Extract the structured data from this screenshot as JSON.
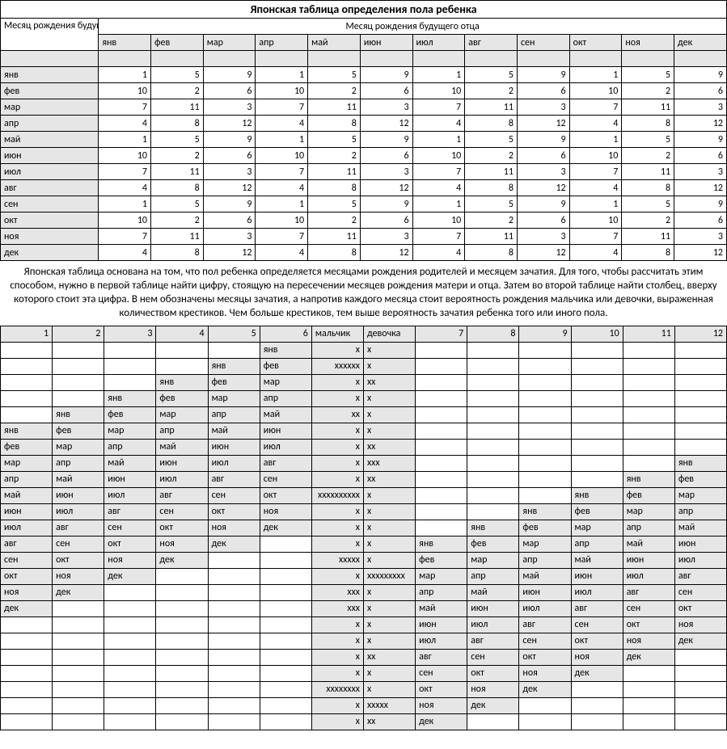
{
  "title": "Японская таблица определения пола ребенка",
  "header_mother": "Месяц рождения будущей матери",
  "header_father": "Месяц рождения будущего отца",
  "months": [
    "янв",
    "фев",
    "мар",
    "апр",
    "май",
    "июн",
    "июл",
    "авг",
    "сен",
    "окт",
    "ноя",
    "дек"
  ],
  "table1_rows": [
    {
      "m": "янв",
      "v": [
        1,
        5,
        9,
        1,
        5,
        9,
        1,
        5,
        9,
        1,
        5,
        9
      ]
    },
    {
      "m": "фев",
      "v": [
        10,
        2,
        6,
        10,
        2,
        6,
        10,
        2,
        6,
        10,
        2,
        6
      ]
    },
    {
      "m": "мар",
      "v": [
        7,
        11,
        3,
        7,
        11,
        3,
        7,
        11,
        3,
        7,
        11,
        3
      ]
    },
    {
      "m": "апр",
      "v": [
        4,
        8,
        12,
        4,
        8,
        12,
        4,
        8,
        12,
        4,
        8,
        12
      ]
    },
    {
      "m": "май",
      "v": [
        1,
        5,
        9,
        1,
        5,
        9,
        1,
        5,
        9,
        1,
        5,
        9
      ]
    },
    {
      "m": "июн",
      "v": [
        10,
        2,
        6,
        10,
        2,
        6,
        10,
        2,
        6,
        10,
        2,
        6
      ]
    },
    {
      "m": "июл",
      "v": [
        7,
        11,
        3,
        7,
        11,
        3,
        7,
        11,
        3,
        7,
        11,
        3
      ]
    },
    {
      "m": "авг",
      "v": [
        4,
        8,
        12,
        4,
        8,
        12,
        4,
        8,
        12,
        4,
        8,
        12
      ]
    },
    {
      "m": "сен",
      "v": [
        1,
        5,
        9,
        1,
        5,
        9,
        1,
        5,
        9,
        1,
        5,
        9
      ]
    },
    {
      "m": "окт",
      "v": [
        10,
        2,
        6,
        10,
        2,
        6,
        10,
        2,
        6,
        10,
        2,
        6
      ]
    },
    {
      "m": "ноя",
      "v": [
        7,
        11,
        3,
        7,
        11,
        3,
        7,
        11,
        3,
        7,
        11,
        3
      ]
    },
    {
      "m": "дек",
      "v": [
        4,
        8,
        12,
        4,
        8,
        12,
        4,
        8,
        12,
        4,
        8,
        12
      ]
    }
  ],
  "description": "Японская таблица основана на том, что пол ребенка определяется месяцами рождения родителей и месяцем зачатия. Для того, чтобы рассчитать этим способом, нужно в первой таблице найти цифру, стоящую на пересечении месяцев рождения матери и отца. Затем во второй таблице найти столбец, вверху которого стоит эта цифра. В нем обозначены месяцы зачатия, а напротив каждого месяца стоит вероятность рождения мальчика или девочки, выраженная количеством крестиков. Чем больше крестиков, тем выше вероятность зачатия ребенка того или иного пола.",
  "t2_header_left": [
    "1",
    "2",
    "3",
    "4",
    "5",
    "6"
  ],
  "t2_header_mid": [
    "мальчик",
    "девочка"
  ],
  "t2_header_right": [
    "7",
    "8",
    "9",
    "10",
    "11",
    "12"
  ],
  "table2_rows": [
    {
      "l": [
        "",
        "",
        "",
        "",
        "",
        "янв"
      ],
      "b": "x",
      "g": "x",
      "r": [
        "",
        "",
        "",
        "",
        "",
        ""
      ]
    },
    {
      "l": [
        "",
        "",
        "",
        "",
        "янв",
        "фев"
      ],
      "b": "xxxxxx",
      "g": "x",
      "r": [
        "",
        "",
        "",
        "",
        "",
        ""
      ]
    },
    {
      "l": [
        "",
        "",
        "",
        "янв",
        "фев",
        "мар"
      ],
      "b": "x",
      "g": "xx",
      "r": [
        "",
        "",
        "",
        "",
        "",
        ""
      ]
    },
    {
      "l": [
        "",
        "",
        "янв",
        "фев",
        "мар",
        "апр"
      ],
      "b": "x",
      "g": "x",
      "r": [
        "",
        "",
        "",
        "",
        "",
        ""
      ]
    },
    {
      "l": [
        "",
        "янв",
        "фев",
        "мар",
        "апр",
        "май"
      ],
      "b": "xx",
      "g": "x",
      "r": [
        "",
        "",
        "",
        "",
        "",
        ""
      ]
    },
    {
      "l": [
        "янв",
        "фев",
        "мар",
        "апр",
        "май",
        "июн"
      ],
      "b": "x",
      "g": "x",
      "r": [
        "",
        "",
        "",
        "",
        "",
        ""
      ]
    },
    {
      "l": [
        "фев",
        "мар",
        "апр",
        "май",
        "июн",
        "июл"
      ],
      "b": "x",
      "g": "xx",
      "r": [
        "",
        "",
        "",
        "",
        "",
        ""
      ]
    },
    {
      "l": [
        "мар",
        "апр",
        "май",
        "июн",
        "июл",
        "авг"
      ],
      "b": "x",
      "g": "xxx",
      "r": [
        "",
        "",
        "",
        "",
        "",
        "янв"
      ]
    },
    {
      "l": [
        "апр",
        "май",
        "июн",
        "июл",
        "авг",
        "сен"
      ],
      "b": "x",
      "g": "xx",
      "r": [
        "",
        "",
        "",
        "",
        "янв",
        "фев"
      ]
    },
    {
      "l": [
        "май",
        "июн",
        "июл",
        "авг",
        "сен",
        "окт"
      ],
      "b": "xxxxxxxxxx",
      "g": "x",
      "r": [
        "",
        "",
        "",
        "янв",
        "фев",
        "мар"
      ]
    },
    {
      "l": [
        "июн",
        "июл",
        "авг",
        "сен",
        "окт",
        "ноя"
      ],
      "b": "x",
      "g": "x",
      "r": [
        "",
        "",
        "янв",
        "фев",
        "мар",
        "апр"
      ]
    },
    {
      "l": [
        "июл",
        "авг",
        "сен",
        "окт",
        "ноя",
        "дек"
      ],
      "b": "x",
      "g": "x",
      "r": [
        "",
        "янв",
        "фев",
        "мар",
        "апр",
        "май"
      ]
    },
    {
      "l": [
        "авг",
        "сен",
        "окт",
        "ноя",
        "дек",
        ""
      ],
      "b": "x",
      "g": "x",
      "r": [
        "янв",
        "фев",
        "мар",
        "апр",
        "май",
        "июн"
      ]
    },
    {
      "l": [
        "сен",
        "окт",
        "ноя",
        "дек",
        "",
        ""
      ],
      "b": "xxxxx",
      "g": "x",
      "r": [
        "фев",
        "мар",
        "апр",
        "май",
        "июн",
        "июл"
      ]
    },
    {
      "l": [
        "окт",
        "ноя",
        "дек",
        "",
        "",
        ""
      ],
      "b": "x",
      "g": "xxxxxxxxx",
      "r": [
        "мар",
        "апр",
        "май",
        "июн",
        "июл",
        "авг"
      ]
    },
    {
      "l": [
        "ноя",
        "дек",
        "",
        "",
        "",
        ""
      ],
      "b": "xxx",
      "g": "x",
      "r": [
        "апр",
        "май",
        "июн",
        "июл",
        "авг",
        "сен"
      ]
    },
    {
      "l": [
        "дек",
        "",
        "",
        "",
        "",
        ""
      ],
      "b": "xxx",
      "g": "x",
      "r": [
        "май",
        "июн",
        "июл",
        "авг",
        "сен",
        "окт"
      ]
    },
    {
      "l": [
        "",
        "",
        "",
        "",
        "",
        ""
      ],
      "b": "x",
      "g": "x",
      "r": [
        "июн",
        "июл",
        "авг",
        "сен",
        "окт",
        "ноя"
      ]
    },
    {
      "l": [
        "",
        "",
        "",
        "",
        "",
        ""
      ],
      "b": "x",
      "g": "x",
      "r": [
        "июл",
        "авг",
        "сен",
        "окт",
        "ноя",
        "дек"
      ]
    },
    {
      "l": [
        "",
        "",
        "",
        "",
        "",
        ""
      ],
      "b": "x",
      "g": "xx",
      "r": [
        "авг",
        "сен",
        "окт",
        "ноя",
        "дек",
        ""
      ]
    },
    {
      "l": [
        "",
        "",
        "",
        "",
        "",
        ""
      ],
      "b": "x",
      "g": "x",
      "r": [
        "сен",
        "окт",
        "ноя",
        "дек",
        "",
        ""
      ]
    },
    {
      "l": [
        "",
        "",
        "",
        "",
        "",
        ""
      ],
      "b": "xxxxxxxx",
      "g": "x",
      "r": [
        "окт",
        "ноя",
        "дек",
        "",
        "",
        ""
      ]
    },
    {
      "l": [
        "",
        "",
        "",
        "",
        "",
        ""
      ],
      "b": "x",
      "g": "xxxxx",
      "r": [
        "ноя",
        "дек",
        "",
        "",
        "",
        ""
      ]
    },
    {
      "l": [
        "",
        "",
        "",
        "",
        "",
        ""
      ],
      "b": "x",
      "g": "xx",
      "r": [
        "дек",
        "",
        "",
        "",
        "",
        ""
      ]
    }
  ],
  "colors": {
    "border": "#000000",
    "shaded": "#e6e6e6",
    "background": "#ffffff",
    "text": "#000000"
  },
  "fonts": {
    "body_size_pt": 9,
    "title_size_pt": 11,
    "desc_size_pt": 10
  }
}
